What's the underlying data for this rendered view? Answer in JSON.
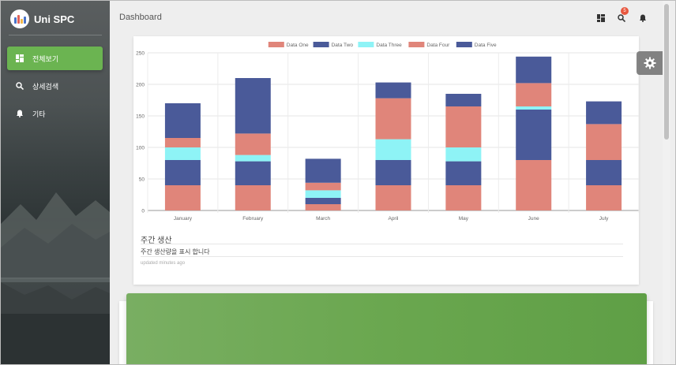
{
  "app": {
    "brand": "Uni SPC",
    "page_title": "Dashboard"
  },
  "sidebar": {
    "items": [
      {
        "label": "전체보기",
        "icon": "dashboard-icon",
        "active": true
      },
      {
        "label": "상세검색",
        "icon": "search-icon",
        "active": false
      },
      {
        "label": "기타",
        "icon": "bell-icon",
        "active": false
      }
    ]
  },
  "topbar": {
    "icons": [
      "dashboard-icon",
      "search-icon",
      "bell-icon"
    ],
    "notification_count": "5"
  },
  "card": {
    "title": "주간 생산",
    "category": "주간 생산량을 표시 합니다",
    "footer": "updated minutes ago"
  },
  "colors": {
    "accent": "#6bb451",
    "series_salmon": "#e0857a",
    "series_navy": "#4a5a99",
    "series_cyan": "#8ef3f6"
  },
  "chart_data": {
    "type": "bar",
    "stacked": true,
    "categories": [
      "January",
      "February",
      "March",
      "April",
      "May",
      "June",
      "July"
    ],
    "series": [
      {
        "name": "Data One",
        "color": "#e0857a",
        "values": [
          40,
          40,
          10,
          40,
          40,
          80,
          40
        ]
      },
      {
        "name": "Data Two",
        "color": "#4a5a99",
        "values": [
          40,
          38,
          10,
          40,
          38,
          80,
          40
        ]
      },
      {
        "name": "Data Three",
        "color": "#8ef3f6",
        "values": [
          20,
          10,
          12,
          33,
          22,
          5,
          0
        ]
      },
      {
        "name": "Data Four",
        "color": "#e0857a",
        "values": [
          15,
          34,
          12,
          65,
          65,
          37,
          57
        ]
      },
      {
        "name": "Data Five",
        "color": "#4a5a99",
        "values": [
          55,
          88,
          38,
          25,
          20,
          42,
          36
        ]
      }
    ],
    "ylim": [
      0,
      250
    ],
    "yticks": [
      0,
      50,
      100,
      150,
      200,
      250
    ],
    "grid": true,
    "legend": "top"
  }
}
